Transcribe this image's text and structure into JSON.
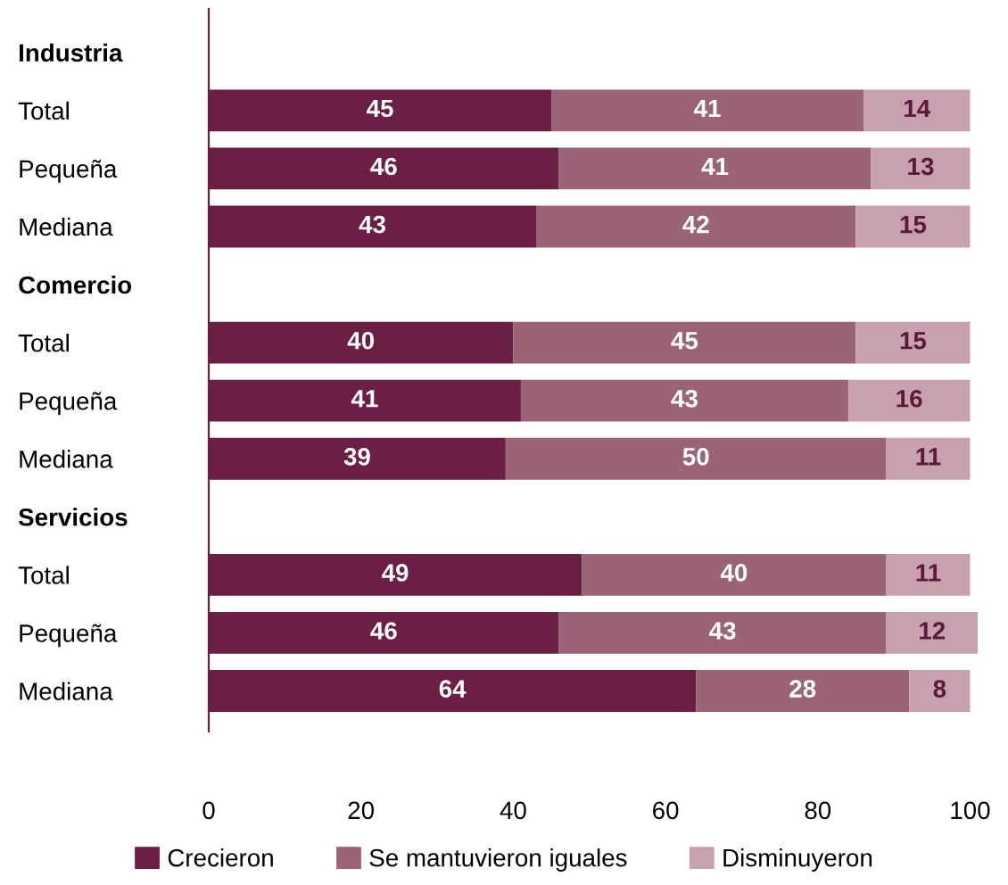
{
  "chart_data": {
    "type": "bar",
    "orientation": "horizontal",
    "stacked": true,
    "data_labels": true,
    "legend": "bottom",
    "grid": false,
    "categories": [
      "Industria",
      "Total",
      "Pequeña",
      "Mediana",
      "Comercio",
      "Total",
      "Pequeña",
      "Mediana",
      "Servicios",
      "Total",
      "Pequeña",
      "Mediana"
    ],
    "xlim": [
      0,
      101
    ],
    "xticks": [
      0,
      20,
      40,
      60,
      80,
      100
    ],
    "series": [
      {
        "name": "Crecieron",
        "color": "#6b1f45",
        "values": [
          null,
          45,
          46,
          43,
          null,
          40,
          41,
          39,
          null,
          49,
          46,
          64
        ]
      },
      {
        "name": "Se mantuvieron iguales",
        "color": "#9b6378",
        "values": [
          null,
          41,
          41,
          42,
          null,
          45,
          43,
          50,
          null,
          40,
          43,
          28
        ]
      },
      {
        "name": "Disminuyeron",
        "color": "#c9a0b0",
        "values": [
          null,
          14,
          13,
          15,
          null,
          15,
          16,
          11,
          null,
          11,
          12,
          8
        ]
      }
    ]
  }
}
